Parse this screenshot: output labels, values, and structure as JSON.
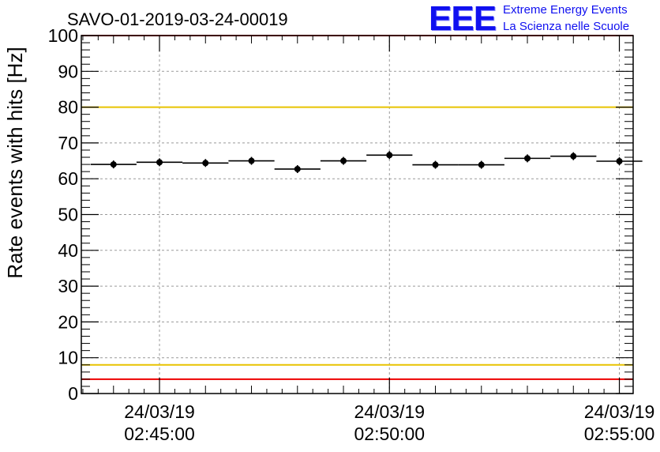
{
  "logo": {
    "mark": "EEE",
    "line1": "Extreme Energy Events",
    "line2": "La Scienza nelle Scuole"
  },
  "colors": {
    "yellow_line": "#e8c300",
    "red_line": "#ee0000",
    "logo_blue": "#1010f0"
  },
  "chart_data": {
    "type": "scatter",
    "title": "SAVO-01-2019-03-24-00019",
    "ylabel": "Rate events with hits [Hz]",
    "xlabel": "",
    "ylim": [
      0,
      100
    ],
    "yticks": [
      0,
      10,
      20,
      30,
      40,
      50,
      60,
      70,
      80,
      90,
      100
    ],
    "xlim_minutes": [
      -1.7,
      10.3
    ],
    "xticks": [
      {
        "minute": 0,
        "date": "24/03/19",
        "time": "02:45:00"
      },
      {
        "minute": 5,
        "date": "24/03/19",
        "time": "02:50:00"
      },
      {
        "minute": 10,
        "date": "24/03/19",
        "time": "02:55:00"
      }
    ],
    "x_reference": "24/03/19 02:45:00",
    "bin_width_minutes": 1.0,
    "grid": true,
    "series": [
      {
        "name": "rate",
        "x_minutes": [
          -1.0,
          0.0,
          1.0,
          2.0,
          3.0,
          4.0,
          5.0,
          6.0,
          7.0,
          8.0,
          9.0,
          10.0
        ],
        "values": [
          64.0,
          64.6,
          64.4,
          65.0,
          62.7,
          65.0,
          66.6,
          63.9,
          63.9,
          65.7,
          66.3,
          64.9
        ]
      }
    ],
    "reference_lines": [
      {
        "value": 80,
        "color": "yellow"
      },
      {
        "value": 8,
        "color": "yellow"
      },
      {
        "value": 100,
        "color": "red"
      },
      {
        "value": 4,
        "color": "red"
      }
    ]
  }
}
